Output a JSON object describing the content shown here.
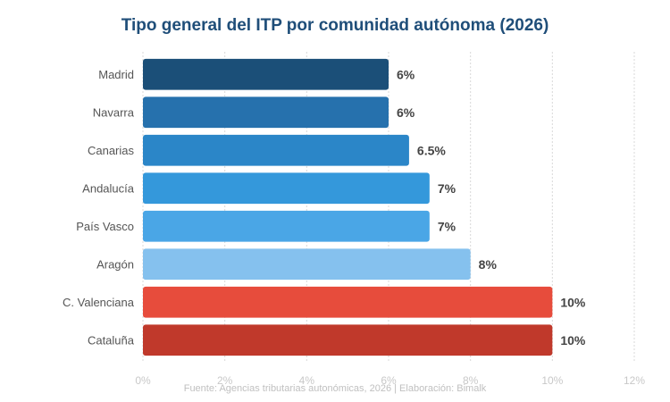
{
  "chart_data": {
    "type": "bar",
    "orientation": "horizontal",
    "title": "Tipo general del ITP por comunidad autónoma (2026)",
    "categories": [
      "Madrid",
      "Navarra",
      "Canarias",
      "Andalucía",
      "País Vasco",
      "Aragón",
      "C. Valenciana",
      "Cataluña"
    ],
    "values": [
      6,
      6,
      6.5,
      7,
      7,
      8,
      10,
      10
    ],
    "value_labels": [
      "6%",
      "6%",
      "6.5%",
      "7%",
      "7%",
      "8%",
      "10%",
      "10%"
    ],
    "colors": [
      "#1b4f78",
      "#2671ad",
      "#2b86c8",
      "#3498db",
      "#4aa6e6",
      "#85c1ee",
      "#e74c3c",
      "#c0392b"
    ],
    "xlim": [
      0,
      12
    ],
    "xticks": [
      0,
      2,
      4,
      6,
      8,
      10,
      12
    ],
    "xtick_labels": [
      "0%",
      "2%",
      "4%",
      "6%",
      "8%",
      "10%",
      "12%"
    ],
    "xlabel": "",
    "ylabel": "",
    "grid": "vertical-dashed",
    "legend": "none",
    "source": "Fuente: Agencias tributarias autonómicas, 2026 | Elaboración: Bimalk"
  }
}
